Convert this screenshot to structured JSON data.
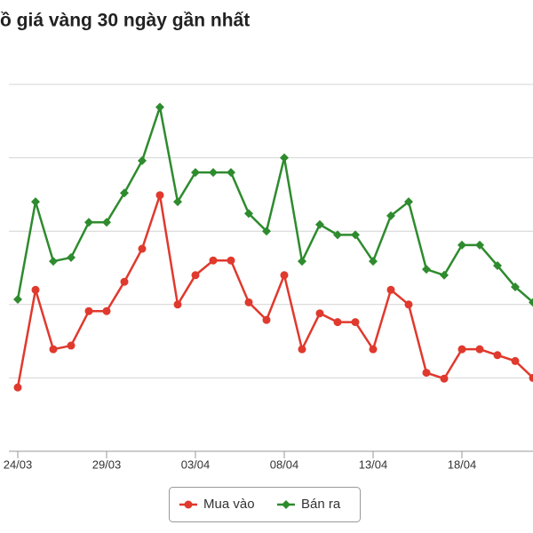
{
  "chart_data": {
    "type": "line",
    "title": "ồ giá vàng 30 ngày gần nhất",
    "categories": [
      "24/03",
      null,
      null,
      null,
      null,
      "29/03",
      null,
      null,
      null,
      null,
      "03/04",
      null,
      null,
      null,
      null,
      "08/04",
      null,
      null,
      null,
      null,
      "13/04",
      null,
      null,
      null,
      null,
      "18/04",
      null,
      null,
      null,
      null
    ],
    "series": [
      {
        "name": "Mua vào",
        "color": "#e0392d",
        "values": [
          0.87,
          2.2,
          1.39,
          1.44,
          1.91,
          1.91,
          2.31,
          2.76,
          3.49,
          2.0,
          2.4,
          2.6,
          2.6,
          2.03,
          1.79,
          2.4,
          1.39,
          1.88,
          1.76,
          1.76,
          1.39,
          2.2,
          2.0,
          1.07,
          0.99,
          1.39,
          1.39,
          1.31,
          1.23,
          1.0
        ]
      },
      {
        "name": "Bán ra",
        "color": "#2e8b2e",
        "values": [
          2.07,
          3.4,
          2.59,
          2.64,
          3.12,
          3.12,
          3.52,
          3.96,
          4.69,
          3.4,
          3.8,
          3.8,
          3.8,
          3.24,
          3.0,
          4.0,
          2.59,
          3.09,
          2.95,
          2.95,
          2.59,
          3.21,
          3.4,
          2.48,
          2.4,
          2.81,
          2.81,
          2.53,
          2.24,
          2.03
        ]
      }
    ],
    "ylim": [
      0,
      5
    ],
    "gridlines": [
      1,
      2,
      3,
      4,
      5
    ],
    "grid": true
  }
}
